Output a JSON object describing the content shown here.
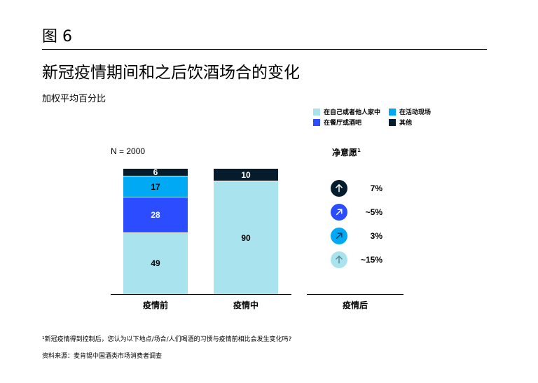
{
  "figure_label": "图 6",
  "title": "新冠疫情期间和之后饮酒场合的变化",
  "subtitle": "加权平均百分比",
  "legend": [
    {
      "label": "在自己或者他人家中",
      "color": "#a8e3ee"
    },
    {
      "label": "在活动现场",
      "color": "#00a9f4"
    },
    {
      "label": "在餐厅或酒吧",
      "color": "#2b4cff"
    },
    {
      "label": "其他",
      "color": "#051c2c"
    }
  ],
  "chart_data": {
    "type": "bar",
    "stacked": true,
    "note": "N = 2000",
    "categories": [
      "疫情前",
      "疫情中"
    ],
    "ylim": [
      0,
      100
    ],
    "series": [
      {
        "name": "在自己或者他人家中",
        "color": "#a8e3ee",
        "values": [
          49,
          90
        ]
      },
      {
        "name": "在餐厅或酒吧",
        "color": "#2b4cff",
        "values": [
          28,
          0
        ]
      },
      {
        "name": "在活动现场",
        "color": "#00a9f4",
        "values": [
          17,
          0
        ]
      },
      {
        "name": "其他",
        "color": "#051c2c",
        "values": [
          6,
          10
        ]
      }
    ]
  },
  "after": {
    "category": "疫情后",
    "header": "净意愿",
    "header_sup": "1",
    "items": [
      {
        "icon": "arrow-up-icon",
        "color": "#051c2c",
        "arrow": "#ffffff",
        "value": "7%"
      },
      {
        "icon": "arrow-up-right-icon",
        "color": "#2b4cff",
        "arrow": "#ffffff",
        "value": "~5%"
      },
      {
        "icon": "arrow-up-right-icon",
        "color": "#00a9f4",
        "arrow": "#1a3a5a",
        "value": "3%"
      },
      {
        "icon": "arrow-up-icon",
        "color": "#a8e3ee",
        "arrow": "#5a8a9a",
        "value": "~15%"
      }
    ]
  },
  "footnote": "¹新冠疫情得到控制后，您认为以下地点/场合/人们喝酒的习惯与疫情前相比会发生变化吗?",
  "source": "资料来源：麦肯锡中国酒类市场消费者调查"
}
